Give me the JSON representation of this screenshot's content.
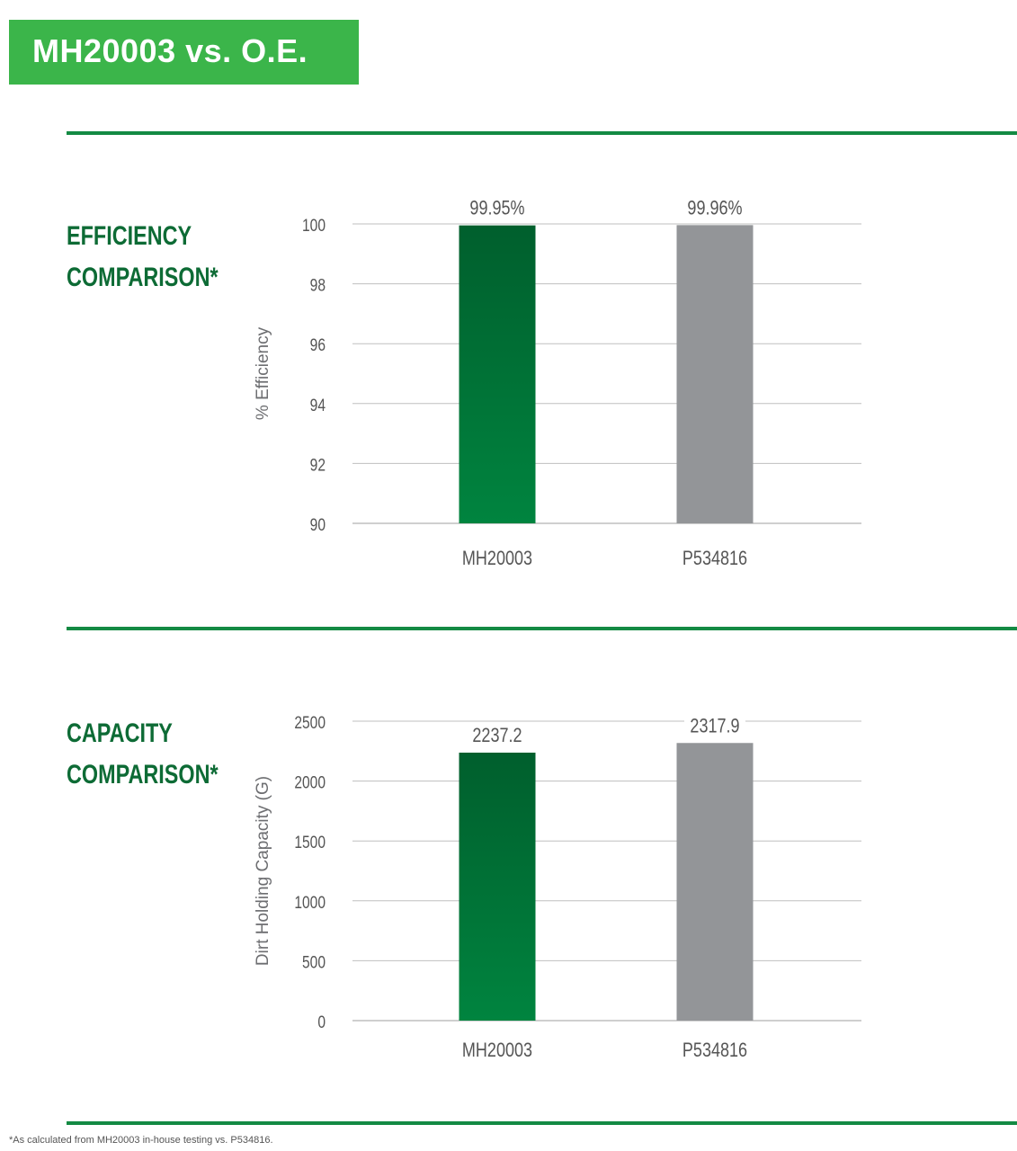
{
  "header": {
    "title": "MH20003 vs. O.E.",
    "background_color": "#3bb54a"
  },
  "colors": {
    "accent_green": "#138a43",
    "heading_green": "#0d6b35",
    "bar_green_top": "#005f2d",
    "bar_green_bottom": "#00843f",
    "bar_gray": "#939598",
    "grid": "#bfbfbf",
    "text": "#555555"
  },
  "sections": [
    {
      "heading_line1": "EFFICIENCY",
      "heading_line2": "COMPARISON*"
    },
    {
      "heading_line1": "CAPACITY",
      "heading_line2": "COMPARISON*"
    }
  ],
  "chart_data": [
    {
      "type": "bar",
      "categories": [
        "MH20003",
        "P534816"
      ],
      "values": [
        99.95,
        99.96
      ],
      "value_labels": [
        "99.95%",
        "99.96%"
      ],
      "ylabel": "% Efficiency",
      "ylim": [
        90,
        100
      ],
      "yticks": [
        90,
        92,
        94,
        96,
        98,
        100
      ],
      "grid": true,
      "bar_colors": [
        "green",
        "gray"
      ]
    },
    {
      "type": "bar",
      "categories": [
        "MH20003",
        "P534816"
      ],
      "values": [
        2237.2,
        2317.9
      ],
      "value_labels": [
        "2237.2",
        "2317.9"
      ],
      "ylabel": "Dirt Holding Capacity (G)",
      "ylim": [
        0,
        2500
      ],
      "yticks": [
        0,
        500,
        1000,
        1500,
        2000,
        2500
      ],
      "grid": true,
      "bar_colors": [
        "green",
        "gray"
      ]
    }
  ],
  "footnote": "*As calculated from MH20003 in-house testing vs. P534816."
}
